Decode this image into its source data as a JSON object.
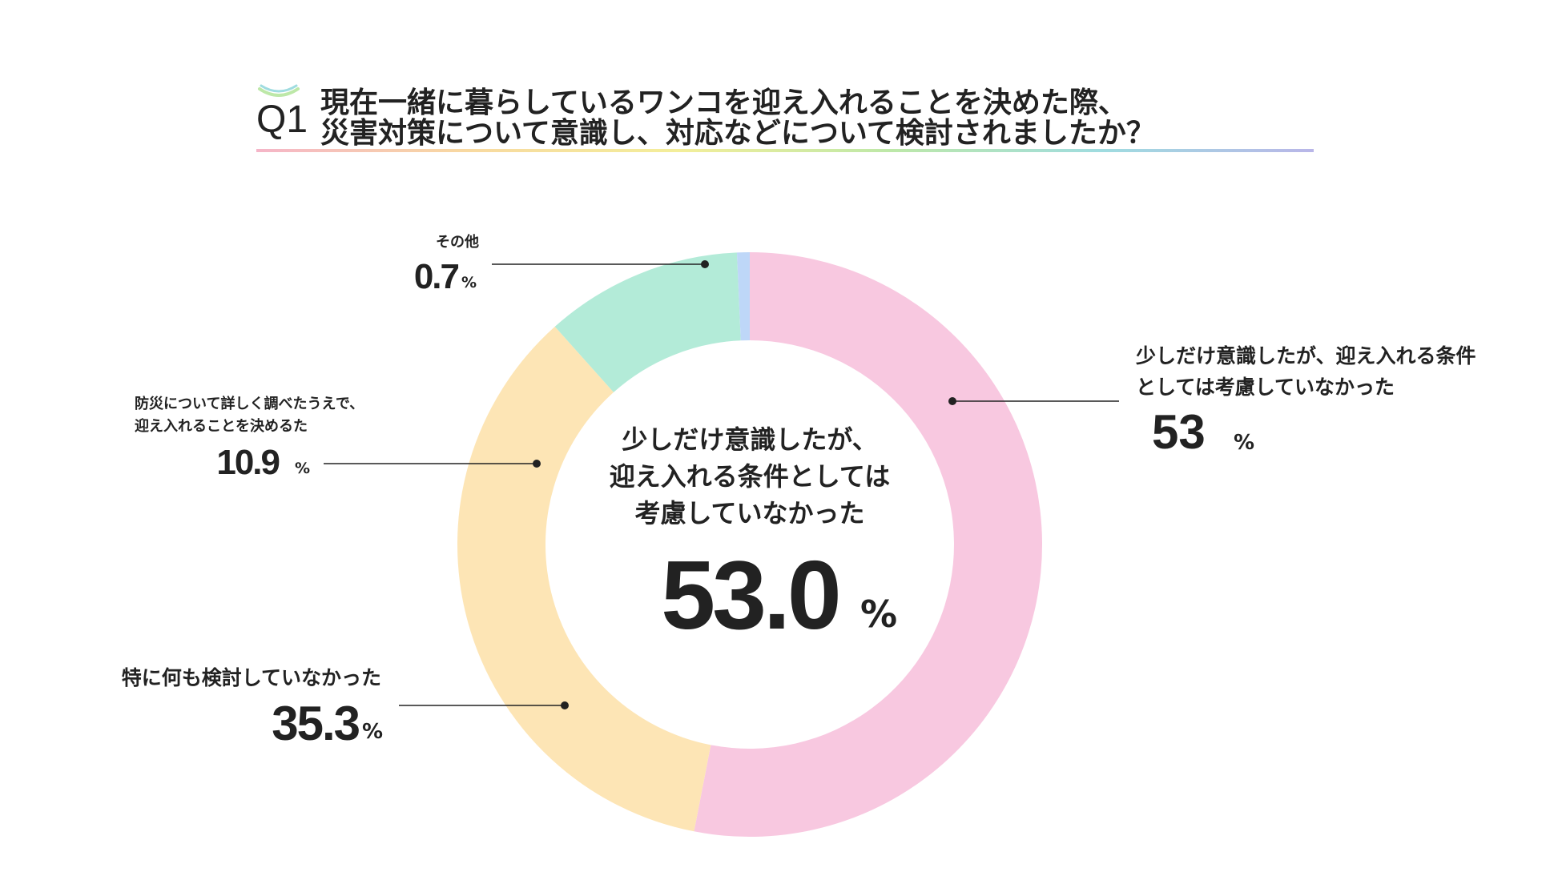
{
  "question_label": "Q1",
  "title_lines": [
    "現在一緒に暮らしているワンコを迎え入れることを決めた際、",
    "災害対策について意識し、対応などについて検討されましたか？"
  ],
  "center": {
    "label_lines": [
      "少しだけ意識したが、",
      "迎え入れる条件としては",
      "考慮していなかった"
    ],
    "value": "53.0",
    "unit": "%"
  },
  "chart_data": {
    "type": "pie",
    "donut": true,
    "start_angle_deg": 0,
    "direction": "clockwise",
    "slices": [
      {
        "key": "little",
        "label_lines": [
          "少しだけ意識したが、迎え入れる条件",
          "としては考慮していなかった"
        ],
        "value": 53.0,
        "display_value": "53",
        "unit": "%",
        "color": "#F8C8E0"
      },
      {
        "key": "none",
        "label_lines": [
          "特に何も検討していなかった"
        ],
        "value": 35.3,
        "display_value": "35.3",
        "unit": "%",
        "color": "#FDE5B5"
      },
      {
        "key": "researched",
        "label_lines": [
          "防災について詳しく調べたうえで、",
          "迎え入れることを決めるた"
        ],
        "value": 10.9,
        "display_value": "10.9",
        "unit": "%",
        "color": "#B3EBD8"
      },
      {
        "key": "other",
        "label_lines": [
          "その他"
        ],
        "value": 0.7,
        "display_value": "0.7",
        "unit": "%",
        "color": "#BED7F8"
      }
    ]
  },
  "colors": {
    "text": "#222222",
    "leader_line": "#222222",
    "title_underline": [
      "#F5B5C8",
      "#F8D9A0",
      "#F3EE9A",
      "#BDE8A8",
      "#9FDCE0",
      "#B9B6E8"
    ]
  }
}
